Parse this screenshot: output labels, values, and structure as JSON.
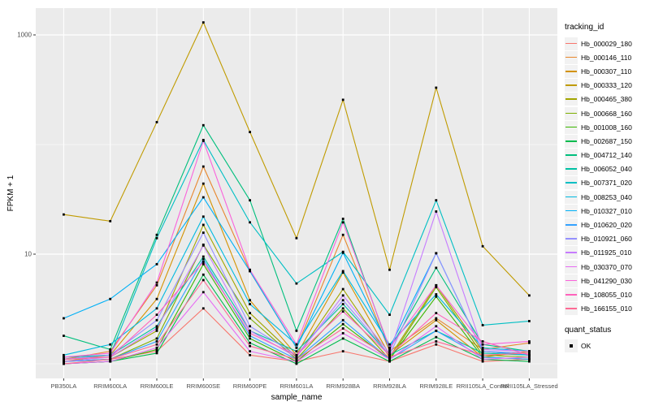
{
  "figure": {
    "background": "#ffffff",
    "panel_background": "#ebebeb",
    "gridline_color": "#ffffff",
    "tick_color": "#333333",
    "axis_text_color": "#4d4d4d",
    "point_color": "#000000"
  },
  "chart_data": {
    "type": "line",
    "title": "",
    "xlabel": "sample_name",
    "ylabel": "FPKM + 1",
    "y_scale": "log10",
    "ylim": [
      0.74,
      1760
    ],
    "y_ticks": [
      {
        "label": "1000",
        "value": 1000
      },
      {
        "label": "10",
        "value": 10
      }
    ],
    "y_minor_gridlines": [
      1,
      100
    ],
    "grid": true,
    "legend_position": "right",
    "point_shape": "filled-square",
    "categories": [
      "PB350LA",
      "RRIM600LA",
      "RRIM600LE",
      "RRIM600SE",
      "RRIM600PE",
      "RRIM601LA",
      "RRIM928BA",
      "RRIM928LA",
      "RRIM928LE",
      "RRII105LA_Control",
      "RRII105LA_Stressed"
    ],
    "series": [
      {
        "name": "Hb_000029_180",
        "color": "#F8766D",
        "values": [
          1.05,
          1.1,
          1.3,
          3.2,
          1.2,
          1.05,
          1.3,
          1.05,
          1.5,
          1.05,
          1.1
        ]
      },
      {
        "name": "Hb_000146_110",
        "color": "#E8862C",
        "values": [
          1.1,
          1.3,
          5.2,
          63,
          7.0,
          1.4,
          15,
          1.3,
          2.6,
          1.35,
          1.55
        ]
      },
      {
        "name": "Hb_000307_110",
        "color": "#D39200",
        "values": [
          1.05,
          1.2,
          3.9,
          44,
          3.8,
          1.2,
          6.8,
          1.2,
          2.5,
          1.15,
          1.3
        ]
      },
      {
        "name": "Hb_000333_120",
        "color": "#C09B00",
        "values": [
          23,
          20,
          160,
          1300,
          130,
          14,
          256,
          7.2,
          330,
          11.8,
          4.2
        ]
      },
      {
        "name": "Hb_000465_380",
        "color": "#A3A500",
        "values": [
          1.1,
          1.15,
          2.0,
          18.5,
          2.9,
          1.15,
          4.8,
          1.15,
          5.2,
          1.3,
          1.2
        ]
      },
      {
        "name": "Hb_000668_160",
        "color": "#7CAE00",
        "values": [
          1.05,
          1.1,
          1.7,
          12.2,
          2.6,
          1.1,
          3.2,
          1.1,
          5.0,
          1.2,
          1.15
        ]
      },
      {
        "name": "Hb_001008_160",
        "color": "#39B600",
        "values": [
          1.0,
          1.05,
          1.35,
          8.1,
          1.7,
          1.05,
          2.3,
          1.1,
          4.1,
          1.15,
          1.1
        ]
      },
      {
        "name": "Hb_002687_150",
        "color": "#00BB4E",
        "values": [
          1.0,
          1.05,
          1.25,
          6.5,
          1.55,
          1.0,
          1.7,
          1.05,
          1.75,
          1.1,
          1.05
        ]
      },
      {
        "name": "Hb_004712_140",
        "color": "#00BF7D",
        "values": [
          1.8,
          1.35,
          15,
          150,
          31,
          2.0,
          21,
          1.35,
          7.5,
          1.5,
          1.3
        ]
      },
      {
        "name": "Hb_006052_040",
        "color": "#00C1A3",
        "values": [
          1.15,
          1.2,
          2.2,
          9.5,
          2.0,
          1.3,
          3.5,
          1.2,
          2.0,
          1.25,
          1.2
        ]
      },
      {
        "name": "Hb_007371_020",
        "color": "#00BFC4",
        "values": [
          1.1,
          1.2,
          14,
          110,
          19.5,
          5.4,
          10.5,
          2.8,
          31,
          2.25,
          2.45
        ]
      },
      {
        "name": "Hb_008253_040",
        "color": "#00BAE0",
        "values": [
          1.2,
          1.5,
          3.2,
          22,
          3.5,
          1.5,
          7.0,
          1.5,
          4.3,
          1.4,
          1.3
        ]
      },
      {
        "name": "Hb_010327_010",
        "color": "#00B0F6",
        "values": [
          2.6,
          3.9,
          8.1,
          33,
          7.0,
          1.4,
          10.3,
          1.4,
          10.2,
          1.3,
          1.2
        ]
      },
      {
        "name": "Hb_010620_020",
        "color": "#35A2FF",
        "values": [
          1.05,
          1.1,
          1.6,
          9.0,
          1.8,
          1.1,
          2.5,
          1.1,
          2.0,
          1.15,
          1.1
        ]
      },
      {
        "name": "Hb_010921_060",
        "color": "#9590FF",
        "values": [
          1.1,
          1.2,
          2.5,
          15.7,
          2.2,
          1.2,
          3.8,
          1.2,
          10.2,
          1.3,
          1.25
        ]
      },
      {
        "name": "Hb_011925_010",
        "color": "#C77CFF",
        "values": [
          1.05,
          1.15,
          2.1,
          12.0,
          2.0,
          1.15,
          4.2,
          1.25,
          24.5,
          1.35,
          1.3
        ]
      },
      {
        "name": "Hb_030370_070",
        "color": "#E76BF3",
        "values": [
          1.0,
          1.05,
          1.4,
          4.5,
          1.3,
          1.05,
          1.9,
          1.1,
          2.2,
          1.1,
          1.15
        ]
      },
      {
        "name": "Hb_041290_030",
        "color": "#FA62DB",
        "values": [
          1.15,
          1.25,
          5.5,
          108,
          7.2,
          1.5,
          19.5,
          1.4,
          5.2,
          1.5,
          1.6
        ]
      },
      {
        "name": "Hb_108055_010",
        "color": "#FF62BC",
        "values": [
          1.1,
          1.15,
          2.8,
          8.5,
          1.9,
          1.2,
          3.0,
          1.2,
          2.9,
          1.6,
          1.2
        ]
      },
      {
        "name": "Hb_166155_010",
        "color": "#FF6A95",
        "values": [
          1.0,
          1.1,
          1.5,
          5.8,
          1.45,
          1.1,
          2.1,
          1.15,
          1.6,
          1.2,
          1.25
        ]
      }
    ]
  },
  "legend": {
    "tracking_title": "tracking_id",
    "quant_title": "quant_status",
    "quant_items": [
      {
        "label": "OK",
        "color": "#000000"
      }
    ]
  }
}
